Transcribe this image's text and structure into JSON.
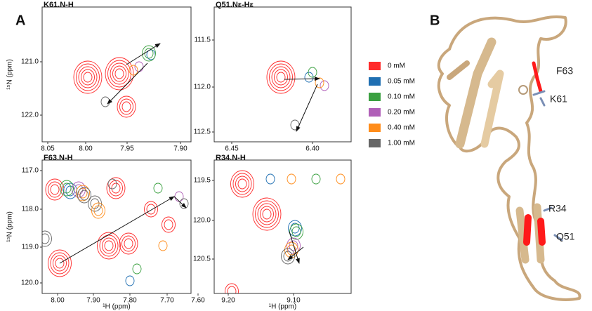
{
  "panel_labels": [
    "A",
    "B"
  ],
  "plots": [
    {
      "title": "K61.N-H",
      "y_axis_label": "¹⁵N (ppm)",
      "xticks": [
        "8.05",
        "8.00",
        "7.95",
        "7.90"
      ],
      "yticks": [
        "121.0",
        "122.0"
      ]
    },
    {
      "title": "Q51.Nε-Hε",
      "xticks": [
        "6.45",
        "6.40"
      ],
      "yticks": [
        "111.5",
        "112.0",
        "112.5"
      ]
    },
    {
      "title": "F63.N-H",
      "y_axis_label": "¹⁵N (ppm)",
      "x_axis_label": "¹H (ppm)",
      "xticks": [
        "8.00",
        "7.90",
        "7.80",
        "7.70",
        "7.60"
      ],
      "yticks": [
        "117.0",
        "118.0",
        "119.0",
        "120.0"
      ]
    },
    {
      "title": "R34.N-H",
      "x_axis_label": "¹H (ppm)",
      "xticks": [
        "9.20",
        "9.10"
      ],
      "yticks": [
        "119.5",
        "120.0",
        "120.5"
      ]
    }
  ],
  "legend": [
    {
      "label": "0 mM",
      "color": "#ff2a2a"
    },
    {
      "label": "0.05 mM",
      "color": "#1f6fb2"
    },
    {
      "label": "0.10 mM",
      "color": "#3aa040"
    },
    {
      "label": "0.20 mM",
      "color": "#b05fb8"
    },
    {
      "label": "0.40 mM",
      "color": "#ff8c1a"
    },
    {
      "label": "1.00 mM",
      "color": "#666666"
    }
  ],
  "residue_labels": [
    "F63",
    "K61",
    "R34",
    "Q51"
  ]
}
